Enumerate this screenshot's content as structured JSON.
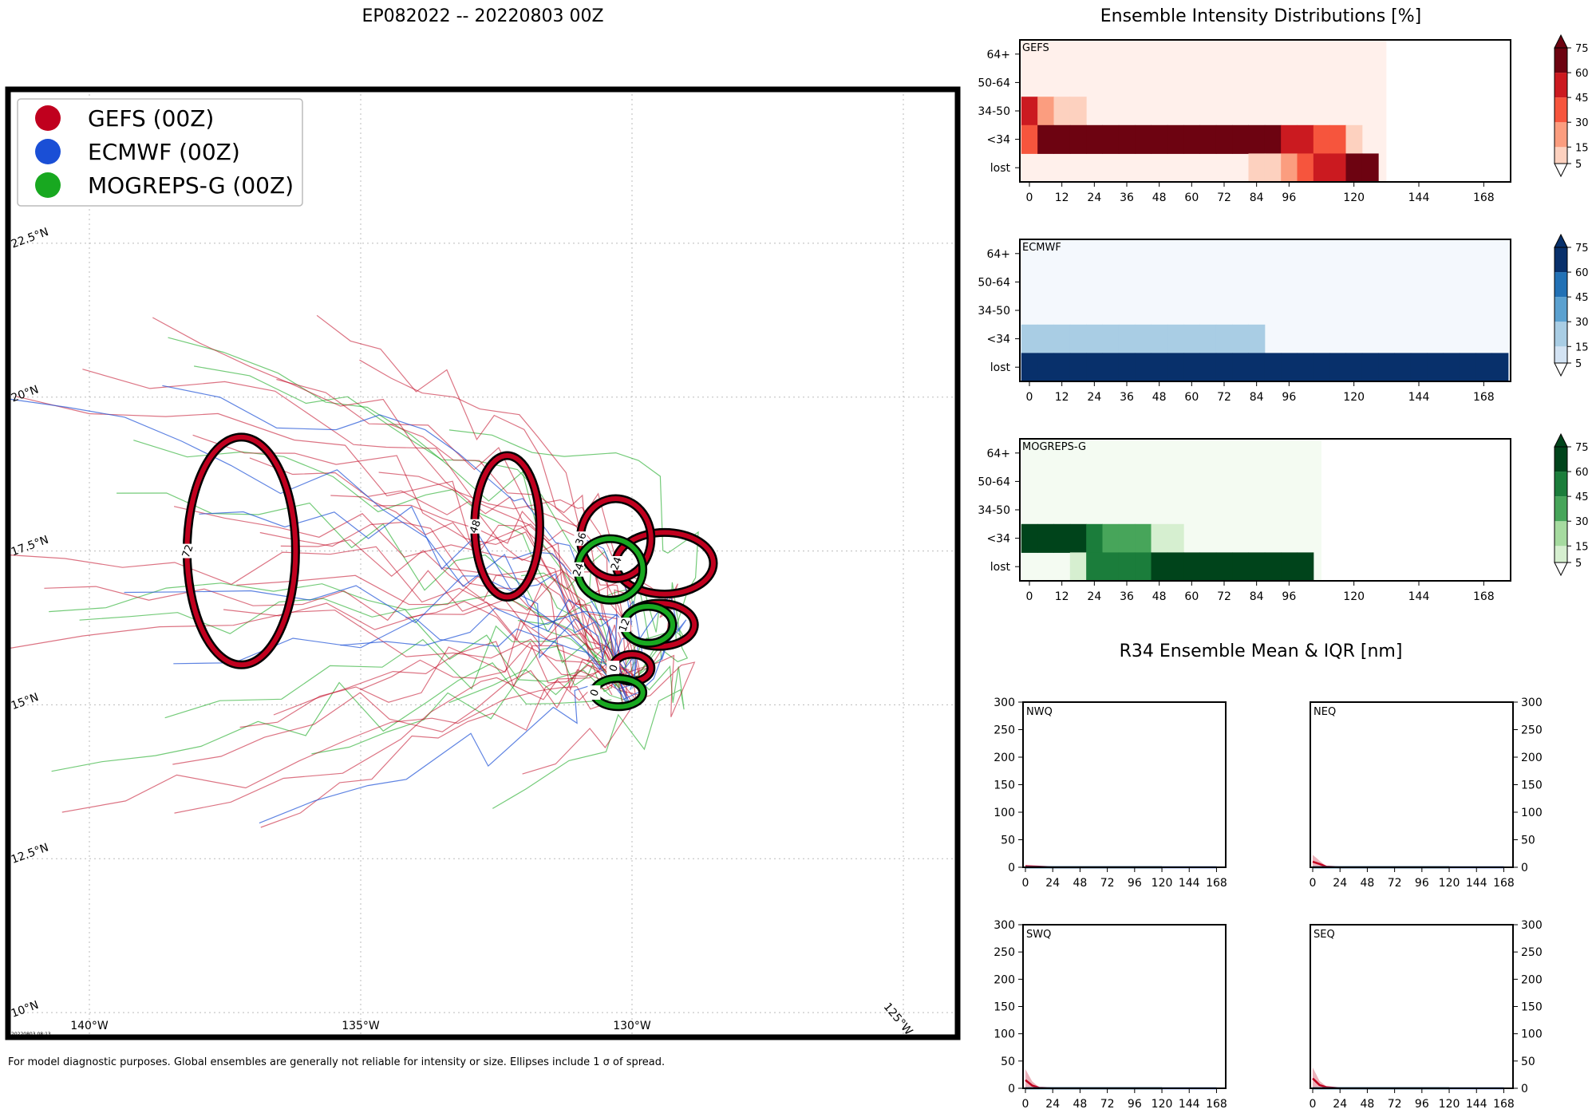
{
  "titles": {
    "main": "EP082022 -- 20220803 00Z",
    "intensity": "Ensemble Intensity Distributions [%]",
    "r34": "R34 Ensemble Mean & IQR [nm]"
  },
  "footnote": "For model diagnostic purposes. Global ensembles are generally not reliable for intensity or size. Ellipses include 1 σ of spread.",
  "timestamp": "20220803 08:13",
  "colors": {
    "gefs": "#c0001e",
    "ecmwf": "#1a4fd6",
    "mogreps": "#18a820"
  },
  "chart_data": [
    {
      "type": "map-tracks",
      "legend": [
        {
          "label": "GEFS (00Z)",
          "color": "#c0001e"
        },
        {
          "label": "ECMWF (00Z)",
          "color": "#1a4fd6"
        },
        {
          "label": "MOGREPS-G (00Z)",
          "color": "#18a820"
        }
      ],
      "lon_ticks": [
        "140°W",
        "135°W",
        "130°W",
        "125°W"
      ],
      "lat_ticks": [
        "10°N",
        "12.5°N",
        "15°N",
        "17.5°N",
        "20°N",
        "22.5°N"
      ],
      "lon_range": [
        -141.5,
        -124.0
      ],
      "lat_range": [
        9.6,
        25.0
      ],
      "ellipses": [
        {
          "model": "gefs",
          "hour": "0",
          "lon": -130.0,
          "lat": 15.6,
          "rlon": 0.35,
          "rlat": 0.22
        },
        {
          "model": "gefs",
          "hour": "12",
          "lon": -129.5,
          "lat": 16.3,
          "rlon": 0.65,
          "rlat": 0.35
        },
        {
          "model": "gefs",
          "hour": "24",
          "lon": -129.4,
          "lat": 17.3,
          "rlon": 0.9,
          "rlat": 0.5
        },
        {
          "model": "gefs",
          "hour": "36",
          "lon": -130.3,
          "lat": 17.7,
          "rlon": 0.65,
          "rlat": 0.65
        },
        {
          "model": "gefs",
          "hour": "48",
          "lon": -132.3,
          "lat": 17.9,
          "rlon": 0.6,
          "rlat": 1.15
        },
        {
          "model": "gefs",
          "hour": "72",
          "lon": -137.2,
          "lat": 17.5,
          "rlon": 1.0,
          "rlat": 1.85
        },
        {
          "model": "mogreps",
          "hour": "0",
          "lon": -130.25,
          "lat": 15.2,
          "rlon": 0.45,
          "rlat": 0.23
        },
        {
          "model": "mogreps",
          "hour": "12",
          "lon": -129.7,
          "lat": 16.3,
          "rlon": 0.45,
          "rlat": 0.3
        },
        {
          "model": "mogreps",
          "hour": "24",
          "lon": -130.4,
          "lat": 17.2,
          "rlon": 0.6,
          "rlat": 0.5
        }
      ]
    },
    {
      "type": "heatmap",
      "name": "GEFS",
      "color_scale": "reds",
      "rows": [
        "64+",
        "50-64",
        "34-50",
        "<34",
        "lost"
      ],
      "x_ticks": [
        0,
        12,
        24,
        36,
        48,
        60,
        72,
        84,
        96,
        120,
        144,
        168
      ],
      "colorbar_ticks": [
        5,
        15,
        30,
        45,
        60,
        75
      ],
      "hours": [
        0,
        6,
        12,
        18,
        24,
        30,
        36,
        42,
        48,
        54,
        60,
        66,
        72,
        78,
        84,
        90,
        96,
        102,
        108,
        114,
        120,
        126
      ],
      "values": {
        "64+": [
          0,
          0,
          0,
          0,
          0,
          0,
          0,
          0,
          0,
          0,
          0,
          0,
          0,
          0,
          0,
          0,
          0,
          0,
          0,
          0,
          0,
          0
        ],
        "50-64": [
          0,
          0,
          0,
          0,
          0,
          0,
          0,
          0,
          0,
          0,
          0,
          0,
          0,
          0,
          0,
          0,
          0,
          0,
          0,
          0,
          0,
          0
        ],
        "34-50": [
          65,
          20,
          10,
          10,
          0,
          0,
          0,
          0,
          0,
          0,
          0,
          0,
          0,
          0,
          0,
          0,
          0,
          0,
          0,
          0,
          0,
          0
        ],
        "<34": [
          35,
          80,
          90,
          90,
          100,
          100,
          100,
          100,
          100,
          100,
          100,
          100,
          100,
          100,
          100,
          100,
          70,
          50,
          30,
          30,
          10,
          0
        ],
        "lost": [
          0,
          0,
          0,
          0,
          0,
          0,
          0,
          0,
          0,
          0,
          0,
          0,
          0,
          0,
          10,
          10,
          20,
          30,
          60,
          60,
          80,
          90
        ]
      }
    },
    {
      "type": "heatmap",
      "name": "ECMWF",
      "color_scale": "blues",
      "rows": [
        "64+",
        "50-64",
        "34-50",
        "<34",
        "lost"
      ],
      "x_ticks": [
        0,
        12,
        24,
        36,
        48,
        60,
        72,
        84,
        96,
        120,
        144,
        168
      ],
      "colorbar_ticks": [
        5,
        15,
        30,
        45,
        60,
        75
      ],
      "hours": [
        0,
        6,
        12,
        18,
        24,
        30,
        36,
        42,
        48,
        54,
        60,
        66,
        72,
        78,
        84,
        90,
        96,
        102,
        108,
        114,
        120,
        126,
        132,
        138,
        144,
        150,
        156,
        162,
        168,
        174
      ],
      "values": {
        "64+": [
          0,
          0,
          0,
          0,
          0,
          0,
          0,
          0,
          0,
          0,
          0,
          0,
          0,
          0,
          0,
          0,
          0,
          0,
          0,
          0,
          0,
          0,
          0,
          0,
          0,
          0,
          0,
          0,
          0,
          0
        ],
        "50-64": [
          0,
          0,
          0,
          0,
          0,
          0,
          0,
          0,
          0,
          0,
          0,
          0,
          0,
          0,
          0,
          0,
          0,
          0,
          0,
          0,
          0,
          0,
          0,
          0,
          0,
          0,
          0,
          0,
          0,
          0
        ],
        "34-50": [
          0,
          0,
          0,
          0,
          0,
          0,
          0,
          0,
          0,
          0,
          0,
          0,
          0,
          0,
          0,
          0,
          0,
          0,
          0,
          0,
          0,
          0,
          0,
          0,
          0,
          0,
          0,
          0,
          0,
          0
        ],
        "<34": [
          25,
          25,
          25,
          25,
          25,
          25,
          25,
          25,
          25,
          15,
          15,
          15,
          15,
          15,
          15,
          0,
          0,
          0,
          0,
          0,
          0,
          0,
          0,
          0,
          0,
          0,
          0,
          0,
          0,
          0
        ],
        "lost": [
          100,
          100,
          100,
          100,
          100,
          100,
          100,
          100,
          100,
          100,
          100,
          100,
          100,
          100,
          100,
          100,
          100,
          100,
          100,
          100,
          100,
          100,
          100,
          100,
          100,
          100,
          100,
          100,
          100,
          100
        ]
      }
    },
    {
      "type": "heatmap",
      "name": "MOGREPS-G",
      "color_scale": "greens",
      "rows": [
        "64+",
        "50-64",
        "34-50",
        "<34",
        "lost"
      ],
      "x_ticks": [
        0,
        12,
        24,
        36,
        48,
        60,
        72,
        84,
        96,
        120,
        144,
        168
      ],
      "colorbar_ticks": [
        5,
        15,
        30,
        45,
        60,
        75
      ],
      "hours": [
        0,
        6,
        12,
        18,
        24,
        30,
        36,
        42,
        48,
        54,
        60,
        66,
        72,
        78,
        84,
        90,
        96,
        102
      ],
      "values": {
        "64+": [
          0,
          0,
          0,
          0,
          0,
          0,
          0,
          0,
          0,
          0,
          0,
          0,
          0,
          0,
          0,
          0,
          0,
          0
        ],
        "50-64": [
          0,
          0,
          0,
          0,
          0,
          0,
          0,
          0,
          0,
          0,
          0,
          0,
          0,
          0,
          0,
          0,
          0,
          0
        ],
        "34-50": [
          0,
          0,
          0,
          0,
          0,
          0,
          0,
          0,
          0,
          0,
          0,
          0,
          0,
          0,
          0,
          0,
          0,
          0
        ],
        "<34": [
          100,
          100,
          100,
          100,
          50,
          40,
          30,
          30,
          10,
          10,
          0,
          0,
          0,
          0,
          0,
          0,
          0,
          0
        ],
        "lost": [
          0,
          0,
          0,
          10,
          50,
          60,
          70,
          70,
          90,
          90,
          100,
          100,
          100,
          100,
          100,
          100,
          100,
          100
        ]
      }
    },
    {
      "type": "line",
      "name": "R34 quadrants",
      "ylim": [
        0,
        300
      ],
      "y_ticks": [
        0,
        50,
        100,
        150,
        200,
        250,
        300
      ],
      "x_ticks": [
        0,
        24,
        48,
        72,
        96,
        120,
        144,
        168
      ],
      "panels": [
        {
          "label": "NWQ",
          "series": [
            {
              "model": "gefs",
              "x": [
                0,
                12,
                24,
                36,
                48,
                72,
                96,
                120
              ],
              "mean": [
                2,
                1,
                0,
                0,
                0,
                0,
                0,
                0
              ],
              "iqr": [
                4,
                2,
                0,
                0,
                0,
                0,
                0,
                0
              ]
            },
            {
              "model": "mogreps",
              "x": [
                0,
                24,
                48,
                72,
                96,
                120
              ],
              "mean": [
                0,
                0,
                0,
                0,
                0,
                0
              ],
              "iqr": [
                0,
                0,
                0,
                0,
                0,
                0
              ]
            },
            {
              "model": "ecmwf",
              "x": [
                0,
                24,
                48,
                72,
                96,
                120,
                144,
                168
              ],
              "mean": [
                0,
                0,
                0,
                0,
                0,
                0,
                0,
                0
              ],
              "iqr": [
                0,
                0,
                0,
                0,
                0,
                0,
                0,
                0
              ]
            }
          ]
        },
        {
          "label": "NEQ",
          "series": [
            {
              "model": "gefs",
              "x": [
                0,
                6,
                12,
                24,
                36,
                48,
                72,
                96,
                120
              ],
              "mean": [
                10,
                6,
                1,
                0,
                0,
                0,
                0,
                0,
                0
              ],
              "iqr": [
                25,
                12,
                2,
                0,
                0,
                0,
                0,
                0,
                0
              ]
            },
            {
              "model": "mogreps",
              "x": [
                0,
                24,
                48,
                72,
                96,
                120
              ],
              "mean": [
                0,
                0,
                0,
                0,
                0,
                0
              ],
              "iqr": [
                0,
                0,
                0,
                0,
                0,
                0
              ]
            },
            {
              "model": "ecmwf",
              "x": [
                0,
                24,
                48,
                72,
                96,
                120,
                144,
                168
              ],
              "mean": [
                0,
                0,
                0,
                0,
                0,
                0,
                0,
                0
              ],
              "iqr": [
                0,
                0,
                0,
                0,
                0,
                0,
                0,
                0
              ]
            }
          ]
        },
        {
          "label": "SWQ",
          "series": [
            {
              "model": "gefs",
              "x": [
                0,
                6,
                12,
                24,
                36,
                48,
                72,
                96,
                120
              ],
              "mean": [
                15,
                5,
                1,
                0,
                0,
                0,
                0,
                0,
                0
              ],
              "iqr": [
                40,
                15,
                2,
                0,
                0,
                0,
                0,
                0,
                0
              ]
            },
            {
              "model": "mogreps",
              "x": [
                0,
                24,
                48,
                72,
                96,
                120
              ],
              "mean": [
                0,
                0,
                0,
                0,
                0,
                0
              ],
              "iqr": [
                0,
                0,
                0,
                0,
                0,
                0
              ]
            },
            {
              "model": "ecmwf",
              "x": [
                0,
                24,
                48,
                72,
                96,
                120,
                144,
                168
              ],
              "mean": [
                0,
                0,
                0,
                0,
                0,
                0,
                0,
                0
              ],
              "iqr": [
                0,
                0,
                0,
                0,
                0,
                0,
                0,
                0
              ]
            }
          ]
        },
        {
          "label": "SEQ",
          "series": [
            {
              "model": "gefs",
              "x": [
                0,
                6,
                12,
                24,
                36,
                48,
                72,
                96,
                120
              ],
              "mean": [
                18,
                6,
                2,
                0,
                0,
                0,
                0,
                0,
                0
              ],
              "iqr": [
                40,
                15,
                3,
                0,
                0,
                0,
                0,
                0,
                0
              ]
            },
            {
              "model": "mogreps",
              "x": [
                0,
                24,
                48,
                72,
                96,
                120
              ],
              "mean": [
                0,
                0,
                0,
                0,
                0,
                0
              ],
              "iqr": [
                0,
                0,
                0,
                0,
                0,
                0
              ]
            },
            {
              "model": "ecmwf",
              "x": [
                0,
                24,
                48,
                72,
                96,
                120,
                144,
                168
              ],
              "mean": [
                0,
                0,
                0,
                0,
                0,
                0,
                0,
                0
              ],
              "iqr": [
                0,
                0,
                0,
                0,
                0,
                0,
                0,
                0
              ]
            }
          ]
        }
      ]
    }
  ]
}
